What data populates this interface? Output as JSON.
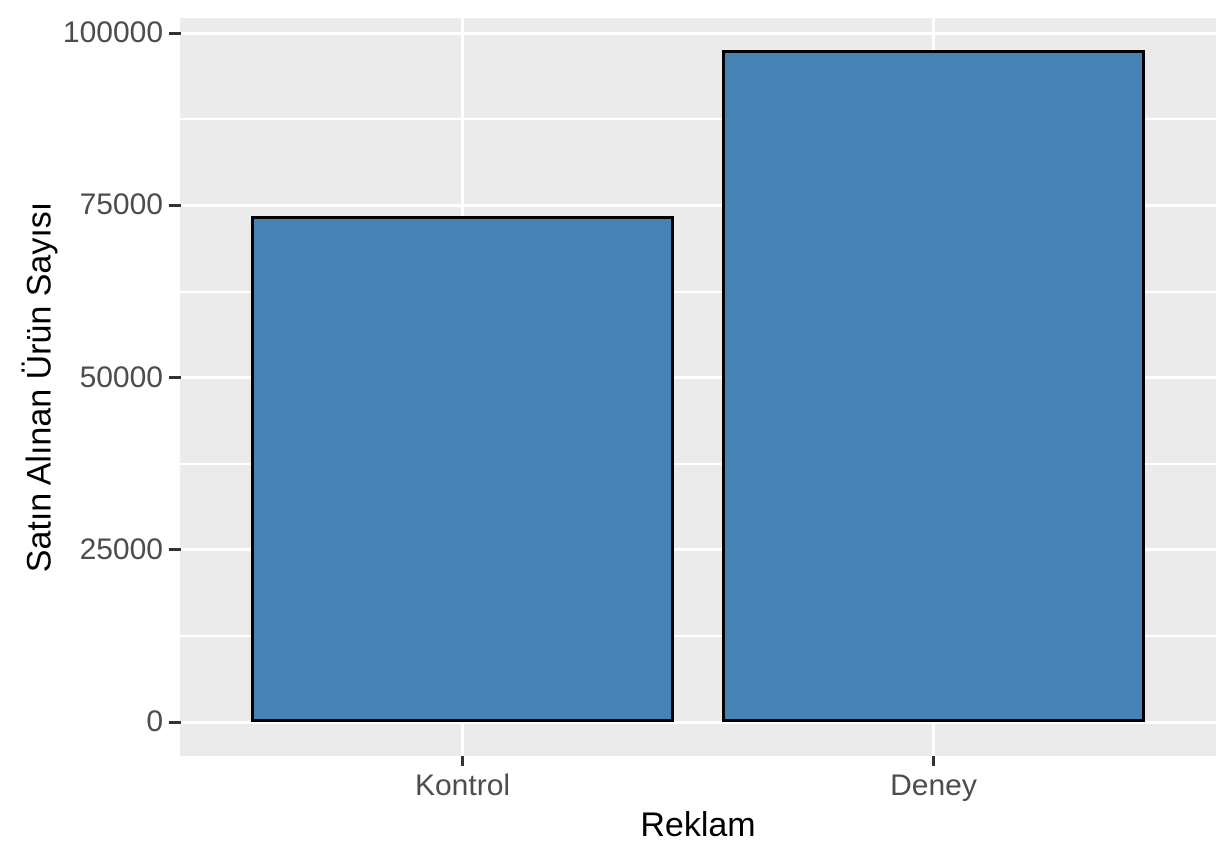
{
  "chart_data": {
    "type": "bar",
    "title": "",
    "xlabel": "Reklam",
    "ylabel": "Satın Alınan Ürün Sayısı",
    "categories": [
      "Kontrol",
      "Deney"
    ],
    "values": [
      73500,
      97500
    ],
    "ylim": [
      0,
      100000
    ],
    "yticks": [
      0,
      25000,
      50000,
      75000,
      100000
    ],
    "ytick_labels": [
      "0",
      "25000",
      "50000",
      "75000",
      "100000"
    ],
    "minor_yticks": [
      12500,
      37500,
      62500,
      87500
    ],
    "grid": true,
    "legend": false,
    "layout": {
      "panel_value_range": [
        -4900,
        102200
      ],
      "bar_centers_frac": [
        0.2727,
        0.7273
      ],
      "bar_width_frac": 0.409
    },
    "style": {
      "bar_fill": "#4682B4",
      "bar_border": "#000000",
      "panel_bg": "#EBEBEB",
      "grid_color": "#FFFFFF",
      "tick_label_color": "#4D4D4D",
      "axis_title_color": "#000000",
      "tick_mark_color": "#333333"
    }
  }
}
